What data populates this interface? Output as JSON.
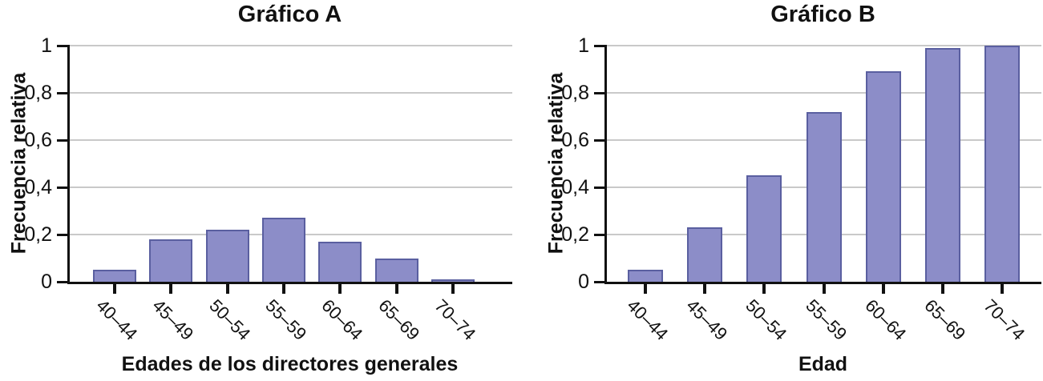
{
  "figure": {
    "background": "#ffffff",
    "bar_fill": "#8c8dc8",
    "bar_stroke": "#5a5fa0",
    "grid_color": "#c9c9c9",
    "axis_color": "#111111"
  },
  "chart_data": [
    {
      "type": "bar",
      "title": "Gráfico A",
      "xlabel": "Edades de los directores generales",
      "ylabel": "Frecuencia relativa",
      "categories": [
        "40–44",
        "45–49",
        "50–54",
        "55–59",
        "60–64",
        "65–69",
        "70–74"
      ],
      "values": [
        0.05,
        0.18,
        0.22,
        0.27,
        0.17,
        0.1,
        0.01
      ],
      "ylim": [
        0,
        1
      ],
      "ytick_values": [
        0,
        0.2,
        0.4,
        0.6,
        0.8,
        1
      ],
      "ytick_labels": [
        "0",
        "0,2",
        "0,4",
        "0,6",
        "0,8",
        "1"
      ],
      "grid": "horizontal",
      "legend": "none",
      "xtick_label_rotation_deg": 45
    },
    {
      "type": "bar",
      "title": "Gráfico B",
      "xlabel": "Edad",
      "ylabel": "Frecuencia relativa",
      "categories": [
        "40–44",
        "45–49",
        "50–54",
        "55–59",
        "60–64",
        "65–69",
        "70–74"
      ],
      "values": [
        0.05,
        0.23,
        0.45,
        0.72,
        0.89,
        0.99,
        1.0
      ],
      "ylim": [
        0,
        1
      ],
      "ytick_values": [
        0,
        0.2,
        0.4,
        0.6,
        0.8,
        1
      ],
      "ytick_labels": [
        "0",
        "0,2",
        "0,4",
        "0,6",
        "0,8",
        "1"
      ],
      "grid": "horizontal",
      "legend": "none",
      "xtick_label_rotation_deg": 45
    }
  ]
}
